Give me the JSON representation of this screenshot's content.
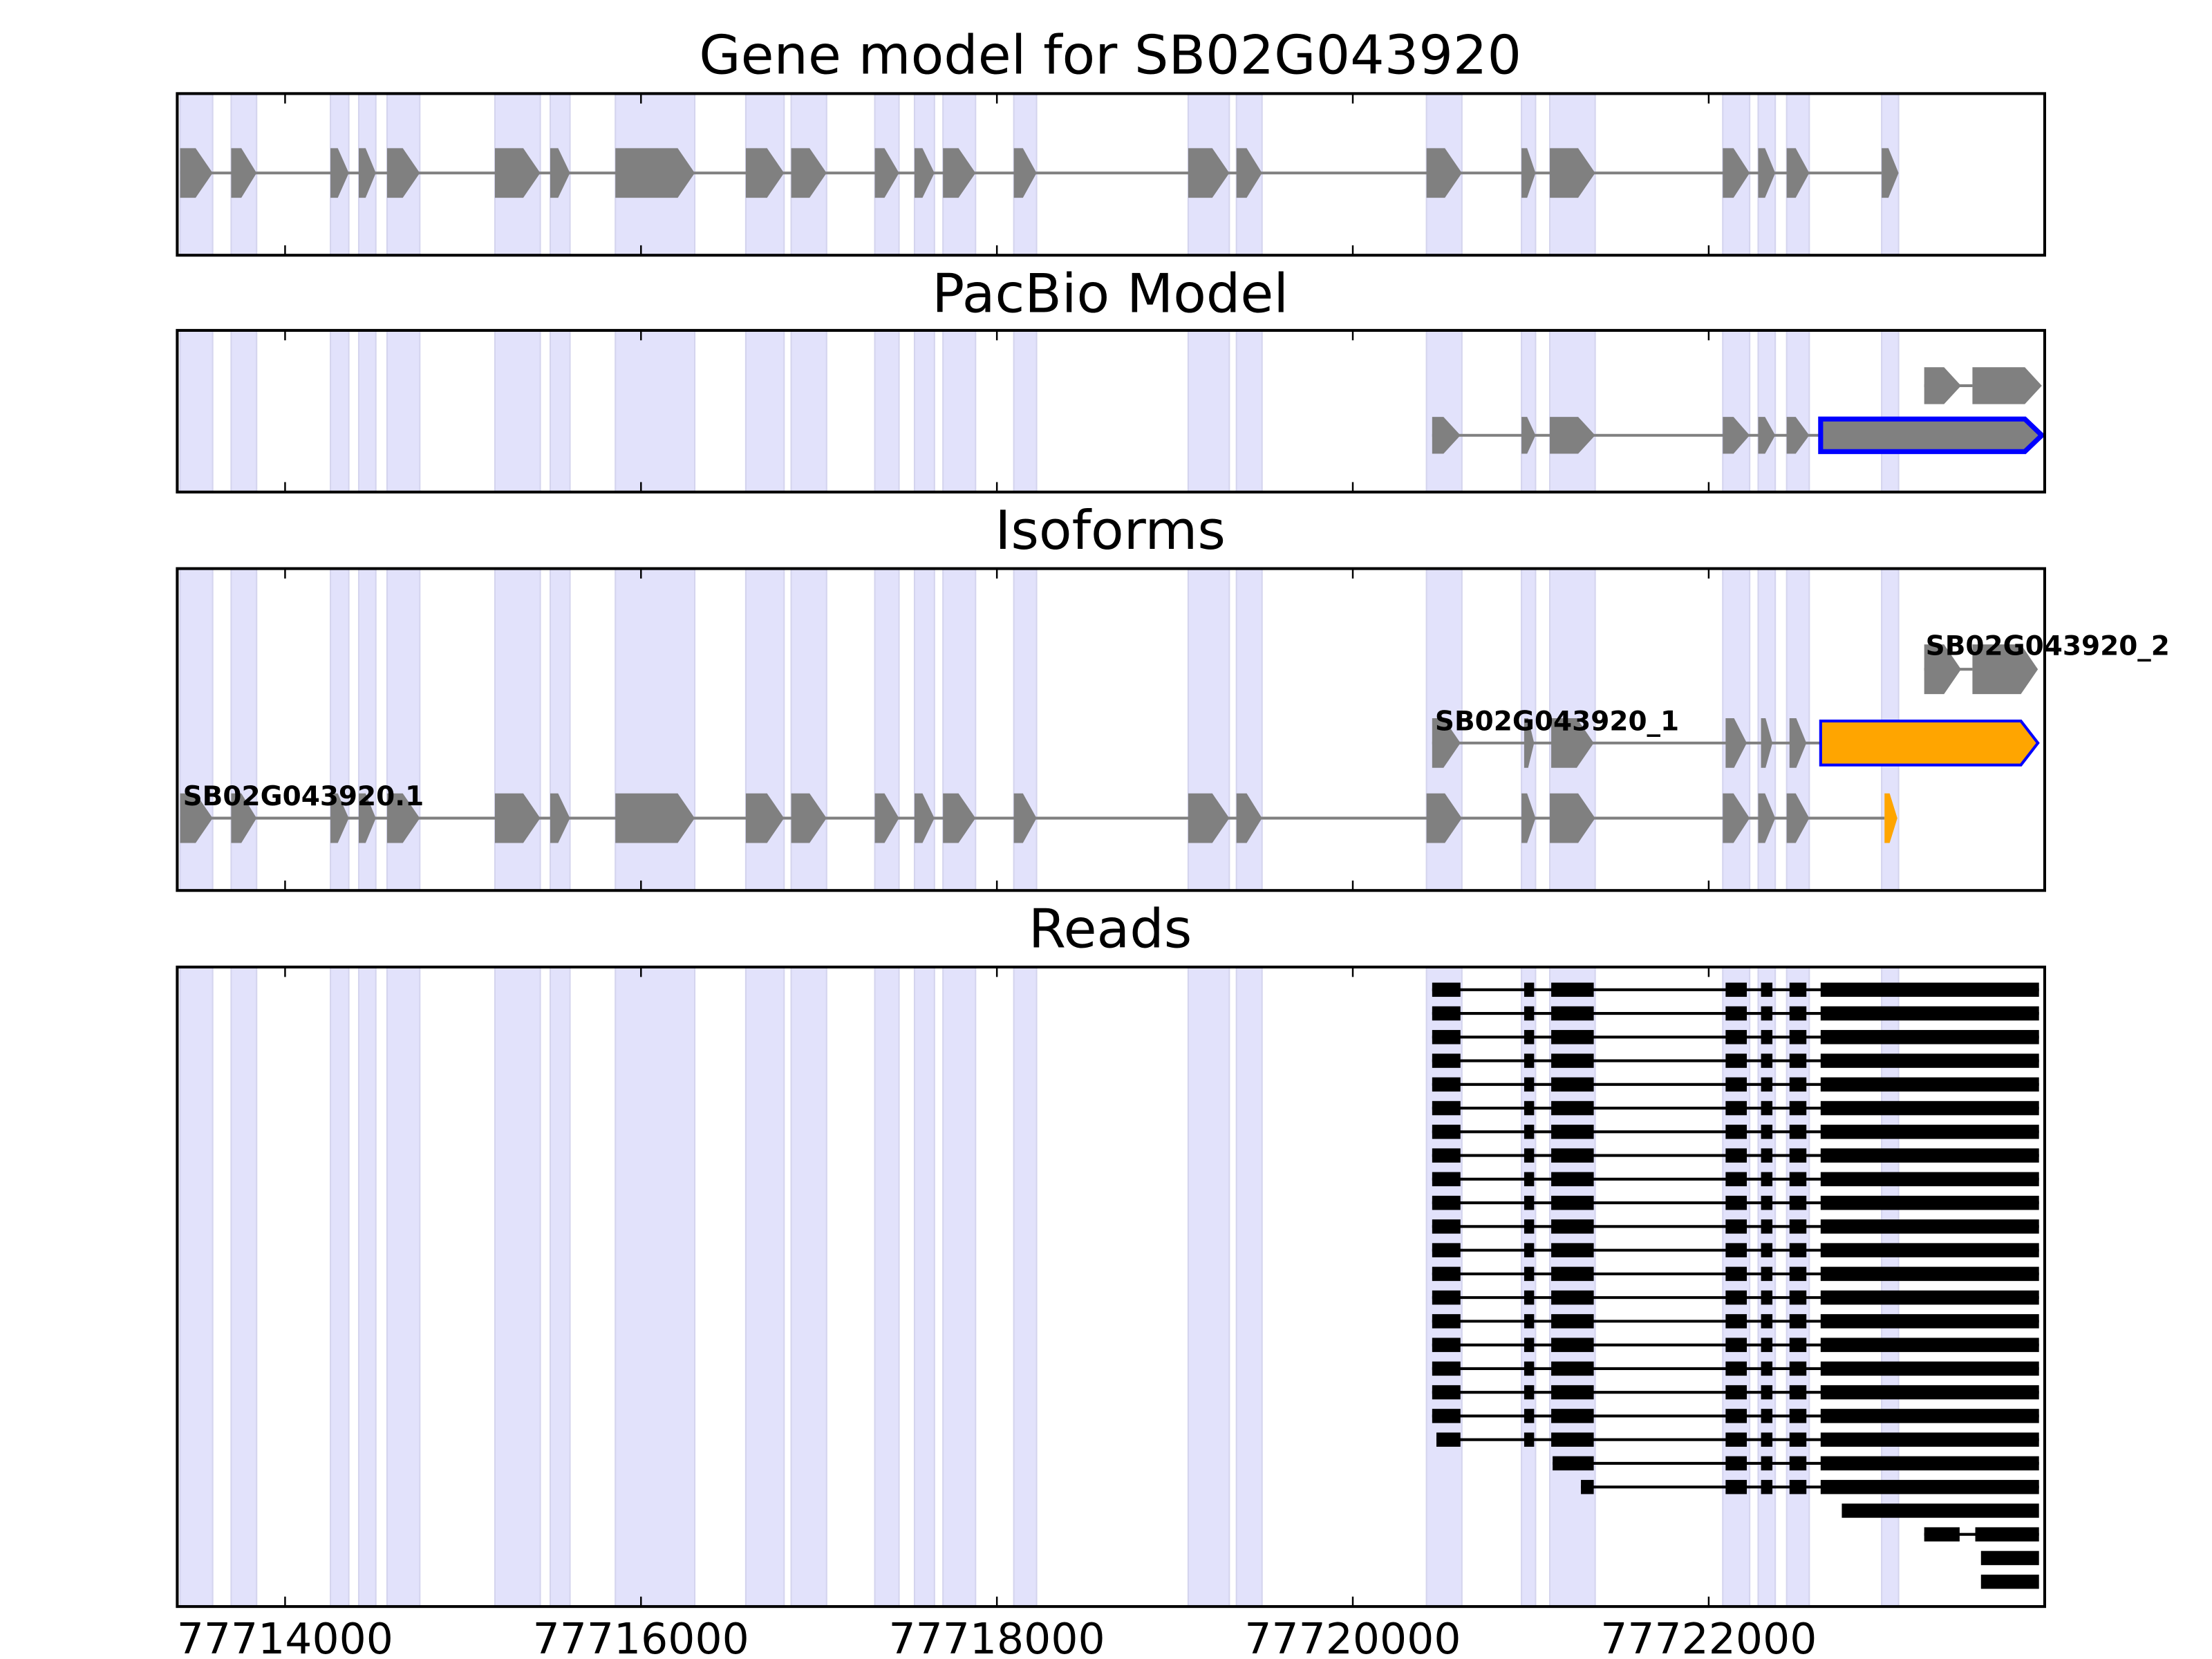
{
  "chart_data": {
    "type": "gene-track",
    "xlim": [
      77713394,
      77723888
    ],
    "xticks": [
      77714000,
      77716000,
      77718000,
      77720000,
      77722000
    ],
    "xtick_labels": [
      "77714000",
      "77716000",
      "77718000",
      "77720000",
      "77722000"
    ],
    "colors": {
      "exon": "#808080",
      "shade": "#e2e2fb",
      "highlight_outline": "#0000ff",
      "highlight_fill": "#ffa500",
      "read": "#000000"
    },
    "shaded_exons": [
      [
        77713410,
        77713593
      ],
      [
        77713697,
        77713840
      ],
      [
        77714255,
        77714358
      ],
      [
        77714414,
        77714510
      ],
      [
        77714573,
        77714757
      ],
      [
        77715179,
        77715434
      ],
      [
        77715490,
        77715601
      ],
      [
        77715856,
        77716302
      ],
      [
        77716589,
        77716804
      ],
      [
        77716844,
        77717043
      ],
      [
        77717314,
        77717450
      ],
      [
        77717537,
        77717649
      ],
      [
        77717697,
        77717880
      ],
      [
        77718095,
        77718223
      ],
      [
        77719075,
        77719306
      ],
      [
        77719346,
        77719490
      ],
      [
        77720414,
        77720613
      ],
      [
        77720948,
        77721027
      ],
      [
        77721107,
        77721362
      ],
      [
        77722079,
        77722230
      ],
      [
        77722278,
        77722374
      ],
      [
        77722438,
        77722565
      ],
      [
        77722972,
        77723067
      ]
    ],
    "panels": [
      {
        "title": "Gene model for SB02G043920",
        "tracks": [
          {
            "label": "",
            "exons": [
              [
                77713410,
                77713593
              ],
              [
                77713697,
                77713840
              ],
              [
                77714255,
                77714358
              ],
              [
                77714414,
                77714510
              ],
              [
                77714573,
                77714757
              ],
              [
                77715179,
                77715434
              ],
              [
                77715490,
                77715601
              ],
              [
                77715856,
                77716302
              ],
              [
                77716589,
                77716804
              ],
              [
                77716844,
                77717043
              ],
              [
                77717314,
                77717450
              ],
              [
                77717537,
                77717649
              ],
              [
                77717697,
                77717880
              ],
              [
                77718095,
                77718223
              ],
              [
                77719075,
                77719306
              ],
              [
                77719346,
                77719490
              ],
              [
                77720414,
                77720613
              ],
              [
                77720948,
                77721027
              ],
              [
                77721107,
                77721362
              ],
              [
                77722079,
                77722230
              ],
              [
                77722278,
                77722374
              ],
              [
                77722438,
                77722565
              ],
              [
                77722972,
                77723067
              ]
            ],
            "highlight": []
          }
        ]
      },
      {
        "title": "PacBio Model",
        "tracks": [
          {
            "label": "",
            "exons": [
              [
                77723211,
                77723418
              ],
              [
                77723482,
                77723872
              ]
            ],
            "highlight": []
          },
          {
            "label": "",
            "exons": [
              [
                77720446,
                77720605
              ],
              [
                77720948,
                77721027
              ],
              [
                77721107,
                77721362
              ],
              [
                77722079,
                77722230
              ],
              [
                77722278,
                77722374
              ],
              [
                77722438,
                77722565
              ],
              [
                77722629,
                77723872
              ]
            ],
            "highlight": [
              [
                6,
                "outline"
              ]
            ]
          }
        ]
      },
      {
        "title": "Isoforms",
        "tracks": [
          {
            "label": "SB02G043920_2",
            "exons": [
              [
                77723211,
                77723418
              ],
              [
                77723482,
                77723850
              ]
            ],
            "highlight": []
          },
          {
            "label": "SB02G043920_1",
            "exons": [
              [
                77720446,
                77720605
              ],
              [
                77720963,
                77721019
              ],
              [
                77721115,
                77721354
              ],
              [
                77722095,
                77722214
              ],
              [
                77722294,
                77722358
              ],
              [
                77722454,
                77722549
              ],
              [
                77722629,
                77723850
              ]
            ],
            "highlight": [
              [
                6,
                "fill-outline"
              ]
            ]
          },
          {
            "label": "SB02G043920.1",
            "exons": [
              [
                77713410,
                77713593
              ],
              [
                77713697,
                77713840
              ],
              [
                77714255,
                77714358
              ],
              [
                77714414,
                77714510
              ],
              [
                77714573,
                77714757
              ],
              [
                77715179,
                77715434
              ],
              [
                77715490,
                77715601
              ],
              [
                77715856,
                77716302
              ],
              [
                77716589,
                77716804
              ],
              [
                77716844,
                77717043
              ],
              [
                77717314,
                77717450
              ],
              [
                77717537,
                77717649
              ],
              [
                77717697,
                77717880
              ],
              [
                77718095,
                77718223
              ],
              [
                77719075,
                77719306
              ],
              [
                77719346,
                77719490
              ],
              [
                77720414,
                77720613
              ],
              [
                77720948,
                77721027
              ],
              [
                77721107,
                77721362
              ],
              [
                77722079,
                77722230
              ],
              [
                77722278,
                77722374
              ],
              [
                77722438,
                77722565
              ],
              [
                77722988,
                77723060
              ]
            ],
            "highlight": [
              [
                22,
                "fill"
              ]
            ]
          }
        ]
      },
      {
        "title": "Reads",
        "full_read_exons": [
          [
            77720446,
            77720605
          ],
          [
            77720963,
            77721019
          ],
          [
            77721115,
            77721354
          ],
          [
            77722095,
            77722214
          ],
          [
            77722294,
            77722358
          ],
          [
            77722454,
            77722549
          ],
          [
            77722629,
            77723856
          ]
        ],
        "full_read_count": 19,
        "partial_reads": [
          [
            [
              77720470,
              77720605
            ],
            [
              77720963,
              77721019
            ],
            [
              77721115,
              77721354
            ],
            [
              77722095,
              77722214
            ],
            [
              77722294,
              77722358
            ],
            [
              77722454,
              77722549
            ],
            [
              77722629,
              77723856
            ]
          ],
          [
            [
              77721123,
              77721354
            ],
            [
              77722095,
              77722214
            ],
            [
              77722294,
              77722358
            ],
            [
              77722454,
              77722549
            ],
            [
              77722629,
              77723856
            ]
          ],
          [
            [
              77721282,
              77721354
            ],
            [
              77722095,
              77722214
            ],
            [
              77722294,
              77722358
            ],
            [
              77722454,
              77722549
            ],
            [
              77722629,
              77723856
            ]
          ],
          [
            [
              77722748,
              77723856
            ]
          ],
          [
            [
              77723211,
              77723410
            ],
            [
              77723498,
              77723856
            ]
          ],
          [
            [
              77723530,
              77723856
            ]
          ],
          [
            [
              77723530,
              77723856
            ]
          ]
        ]
      }
    ]
  }
}
